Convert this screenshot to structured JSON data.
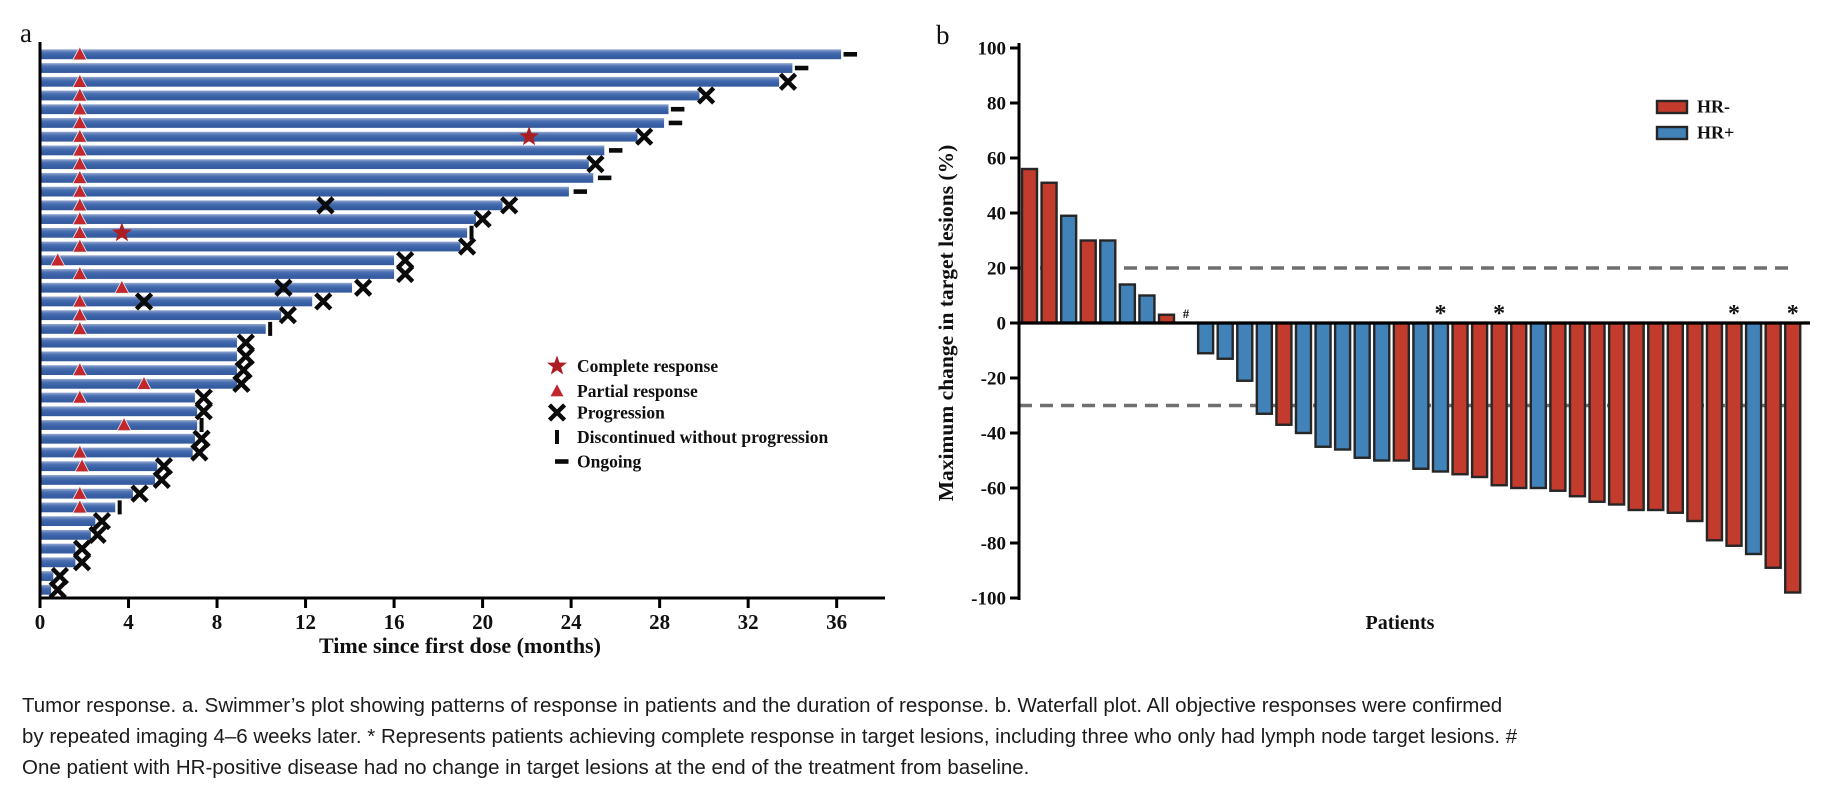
{
  "figure": {
    "panel_a_label": "a",
    "panel_b_label": "b",
    "caption": "Tumor response. a. Swimmer’s plot showing patterns of response in patients and the duration of response. b. Waterfall plot. All objective responses were confirmed by repeated imaging 4–6 weeks later. * Represents patients achieving complete response in target lesions, including three who only had lymph node target lesions. # One patient with HR-positive disease had no change in target lesions at the end of the treatment from baseline."
  },
  "colors": {
    "swimmer_bar": "#3a61a6",
    "swimmer_bar_light": "#93a7cf",
    "marker_red": "#c1272d",
    "star_red": "#ab1e24",
    "marker_black": "#0a0a0a",
    "hr_neg": "#c23b2d",
    "hr_pos": "#4182b9",
    "bar_outline": "#262626",
    "dash_gray": "#6f6f6f",
    "axis_black": "#000000"
  },
  "chart_data": [
    {
      "type": "swimmer",
      "title": "",
      "xlabel": "Time since first dose (months)",
      "xlim": [
        0,
        38
      ],
      "xticks": [
        0,
        4,
        8,
        12,
        16,
        20,
        24,
        28,
        32,
        36
      ],
      "grid": false,
      "legend_position": "center-right",
      "legend": [
        {
          "marker": "cr",
          "label": "Complete response"
        },
        {
          "marker": "pr",
          "label": "Partial response"
        },
        {
          "marker": "x",
          "label": "Progression"
        },
        {
          "marker": "st",
          "label": "Discontinued without progression"
        },
        {
          "marker": "on",
          "label": "Ongoing"
        }
      ],
      "marker_meaning": {
        "pr": "Partial response (red triangle)",
        "cr": "Complete response (red star)",
        "x": "Progression",
        "st": "Discontinued without progression",
        "on": "Ongoing"
      },
      "patients": [
        {
          "duration": 36.2,
          "events": [
            [
              "pr",
              1.8
            ],
            [
              "on",
              36.4
            ]
          ]
        },
        {
          "duration": 34.0,
          "events": [
            [
              "on",
              34.2
            ]
          ]
        },
        {
          "duration": 33.4,
          "events": [
            [
              "pr",
              1.8
            ],
            [
              "x",
              33.8
            ]
          ]
        },
        {
          "duration": 29.8,
          "events": [
            [
              "pr",
              1.8
            ],
            [
              "x",
              30.1
            ]
          ]
        },
        {
          "duration": 28.4,
          "events": [
            [
              "pr",
              1.8
            ],
            [
              "on",
              28.6
            ]
          ]
        },
        {
          "duration": 28.2,
          "events": [
            [
              "pr",
              1.8
            ],
            [
              "on",
              28.5
            ]
          ]
        },
        {
          "duration": 27.0,
          "events": [
            [
              "pr",
              1.8
            ],
            [
              "cr",
              22.1
            ],
            [
              "x",
              27.3
            ]
          ]
        },
        {
          "duration": 25.5,
          "events": [
            [
              "pr",
              1.8
            ],
            [
              "on",
              25.8
            ]
          ]
        },
        {
          "duration": 24.8,
          "events": [
            [
              "pr",
              1.8
            ],
            [
              "x",
              25.1
            ]
          ]
        },
        {
          "duration": 25.0,
          "events": [
            [
              "pr",
              1.8
            ],
            [
              "on",
              25.3
            ]
          ]
        },
        {
          "duration": 23.9,
          "events": [
            [
              "pr",
              1.8
            ],
            [
              "on",
              24.2
            ]
          ]
        },
        {
          "duration": 20.9,
          "events": [
            [
              "pr",
              1.8
            ],
            [
              "x",
              12.9
            ],
            [
              "x",
              21.2
            ]
          ]
        },
        {
          "duration": 19.7,
          "events": [
            [
              "pr",
              1.8
            ],
            [
              "x",
              20.0
            ]
          ]
        },
        {
          "duration": 19.3,
          "events": [
            [
              "pr",
              1.8
            ],
            [
              "cr",
              3.7
            ],
            [
              "st",
              19.5
            ]
          ]
        },
        {
          "duration": 19.0,
          "events": [
            [
              "pr",
              1.8
            ],
            [
              "x",
              19.3
            ]
          ]
        },
        {
          "duration": 16.0,
          "events": [
            [
              "pr",
              0.8
            ],
            [
              "x",
              16.5
            ]
          ]
        },
        {
          "duration": 16.0,
          "events": [
            [
              "pr",
              1.8
            ],
            [
              "x",
              16.5
            ]
          ]
        },
        {
          "duration": 14.1,
          "events": [
            [
              "pr",
              3.7
            ],
            [
              "x",
              11.0
            ],
            [
              "x",
              14.6
            ]
          ]
        },
        {
          "duration": 12.3,
          "events": [
            [
              "pr",
              1.8
            ],
            [
              "x",
              4.7
            ],
            [
              "x",
              12.8
            ]
          ]
        },
        {
          "duration": 10.9,
          "events": [
            [
              "pr",
              1.8
            ],
            [
              "x",
              11.2
            ]
          ]
        },
        {
          "duration": 10.2,
          "events": [
            [
              "pr",
              1.8
            ],
            [
              "st",
              10.4
            ]
          ]
        },
        {
          "duration": 8.9,
          "events": [
            [
              "x",
              9.3
            ]
          ]
        },
        {
          "duration": 8.9,
          "events": [
            [
              "x",
              9.3
            ]
          ]
        },
        {
          "duration": 8.9,
          "events": [
            [
              "pr",
              1.8
            ],
            [
              "x",
              9.2
            ]
          ]
        },
        {
          "duration": 8.9,
          "events": [
            [
              "pr",
              4.7
            ],
            [
              "x",
              9.1
            ]
          ]
        },
        {
          "duration": 7.0,
          "events": [
            [
              "pr",
              1.8
            ],
            [
              "x",
              7.4
            ]
          ]
        },
        {
          "duration": 7.1,
          "events": [
            [
              "x",
              7.4
            ]
          ]
        },
        {
          "duration": 7.1,
          "events": [
            [
              "pr",
              3.8
            ],
            [
              "st",
              7.3
            ]
          ]
        },
        {
          "duration": 7.0,
          "events": [
            [
              "x",
              7.3
            ]
          ]
        },
        {
          "duration": 6.9,
          "events": [
            [
              "pr",
              1.8
            ],
            [
              "x",
              7.2
            ]
          ]
        },
        {
          "duration": 5.3,
          "events": [
            [
              "pr",
              1.9
            ],
            [
              "x",
              5.6
            ]
          ]
        },
        {
          "duration": 5.2,
          "events": [
            [
              "x",
              5.5
            ]
          ]
        },
        {
          "duration": 4.2,
          "events": [
            [
              "pr",
              1.8
            ],
            [
              "x",
              4.5
            ]
          ]
        },
        {
          "duration": 3.4,
          "events": [
            [
              "pr",
              1.8
            ],
            [
              "st",
              3.6
            ]
          ]
        },
        {
          "duration": 2.5,
          "events": [
            [
              "x",
              2.8
            ]
          ]
        },
        {
          "duration": 2.3,
          "events": [
            [
              "x",
              2.6
            ]
          ]
        },
        {
          "duration": 1.6,
          "events": [
            [
              "x",
              1.9
            ]
          ]
        },
        {
          "duration": 1.6,
          "events": [
            [
              "x",
              1.9
            ]
          ]
        },
        {
          "duration": 0.6,
          "events": [
            [
              "x",
              0.9
            ]
          ]
        },
        {
          "duration": 0.5,
          "events": [
            [
              "x",
              0.8
            ]
          ]
        }
      ]
    },
    {
      "type": "bar",
      "subtype": "waterfall",
      "title": "",
      "xlabel": "Patients",
      "ylabel": "Maximum change in target lesions (%)",
      "ylim": [
        -100,
        100
      ],
      "yticks": [
        100,
        80,
        60,
        40,
        20,
        0,
        -20,
        -40,
        -60,
        -80,
        -100
      ],
      "reference_lines": [
        20,
        -30
      ],
      "grid": false,
      "legend_position": "top-right",
      "legend": [
        {
          "label": "HR-",
          "color_key": "hr_neg"
        },
        {
          "label": "HR+",
          "color_key": "hr_pos"
        }
      ],
      "values": [
        56,
        51,
        39,
        30,
        30,
        14,
        10,
        3,
        0,
        -11,
        -13,
        -21,
        -33,
        -37,
        -40,
        -45,
        -46,
        -49,
        -50,
        -50,
        -53,
        -54,
        -55,
        -56,
        -59,
        -60,
        -60,
        -61,
        -63,
        -65,
        -66,
        -68,
        -68,
        -69,
        -72,
        -79,
        -81,
        -84,
        -89,
        -98
      ],
      "groups": [
        "hr_neg",
        "hr_neg",
        "hr_pos",
        "hr_neg",
        "hr_pos",
        "hr_pos",
        "hr_pos",
        "hr_neg",
        "hr_pos",
        "hr_pos",
        "hr_pos",
        "hr_pos",
        "hr_pos",
        "hr_neg",
        "hr_pos",
        "hr_pos",
        "hr_pos",
        "hr_pos",
        "hr_pos",
        "hr_neg",
        "hr_pos",
        "hr_pos",
        "hr_neg",
        "hr_neg",
        "hr_neg",
        "hr_neg",
        "hr_pos",
        "hr_neg",
        "hr_neg",
        "hr_neg",
        "hr_neg",
        "hr_neg",
        "hr_neg",
        "hr_neg",
        "hr_neg",
        "hr_neg",
        "hr_neg",
        "hr_pos",
        "hr_neg",
        "hr_neg"
      ],
      "annotations": [
        {
          "index": 8,
          "symbol": "#"
        },
        {
          "index": 21,
          "symbol": "*"
        },
        {
          "index": 24,
          "symbol": "*"
        },
        {
          "index": 36,
          "symbol": "*"
        },
        {
          "index": 39,
          "symbol": "*"
        }
      ]
    }
  ]
}
